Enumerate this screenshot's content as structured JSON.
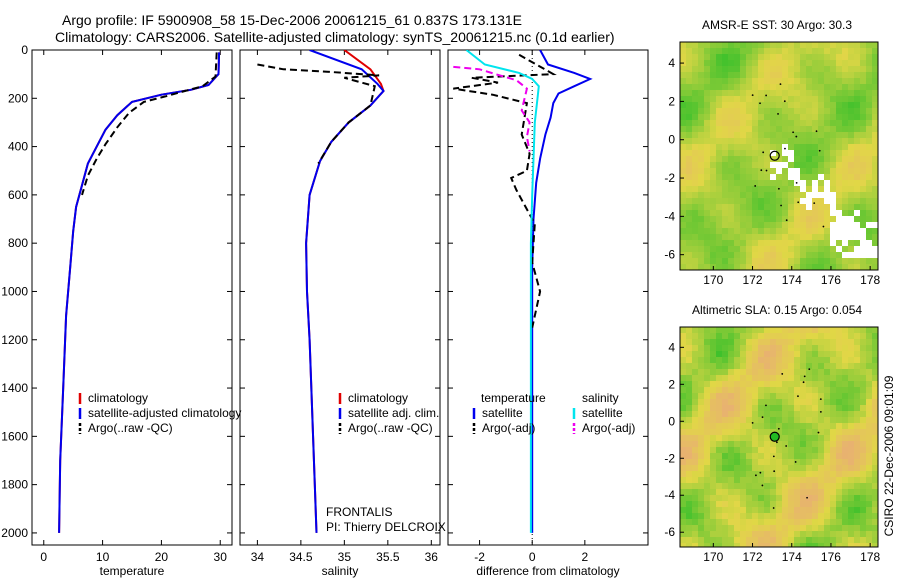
{
  "figure": {
    "title_line1": "Argo profile: IF 5900908_58 15-Dec-2006 20061215_61 0.837S 173.131E",
    "title_line2": "Climatology: CARS2006. Satellite-adjusted climatology: synTS_20061215.nc (0.1d earlier)",
    "credit": "CSIRO 22-Dec-2006 09:01:09"
  },
  "colors": {
    "red": "#e00000",
    "blue": "#0000ee",
    "black": "#000000",
    "cyan": "#00e5ee",
    "magenta": "#ee00ee",
    "map_green": "#22bb22",
    "map_yellow": "#e8d84a",
    "map_orange": "#e8b070"
  },
  "chart_data": [
    {
      "type": "line",
      "xlabel": "temperature",
      "xlim": [
        -2,
        32
      ],
      "ylim": [
        2050,
        0
      ],
      "xticks": [
        0,
        10,
        20,
        30
      ],
      "yticks": [
        0,
        200,
        400,
        600,
        800,
        1000,
        1200,
        1400,
        1600,
        1800,
        2000
      ],
      "legend": [
        "climatology",
        "satellite-adjusted climatology",
        "Argo(..raw -QC)"
      ],
      "series": [
        {
          "name": "climatology",
          "color": "red",
          "style": "solid",
          "x": [
            29.8,
            29.7,
            28,
            25,
            20,
            15,
            12.5,
            10.5,
            9,
            7.5,
            6.5,
            5.5,
            5,
            4.5,
            3.8,
            3.3,
            2.8,
            2.6
          ],
          "y": [
            10,
            100,
            145,
            165,
            185,
            215,
            270,
            330,
            400,
            470,
            560,
            650,
            750,
            900,
            1100,
            1400,
            1700,
            2000
          ]
        },
        {
          "name": "satellite-adjusted climatology",
          "color": "blue",
          "style": "solid",
          "x": [
            29.8,
            29.7,
            28,
            25,
            20,
            15,
            12.5,
            10.5,
            9,
            7.5,
            6.5,
            5.5,
            5,
            4.5,
            3.8,
            3.3,
            2.8,
            2.6
          ],
          "y": [
            10,
            100,
            145,
            165,
            185,
            215,
            270,
            330,
            400,
            470,
            560,
            650,
            750,
            900,
            1100,
            1400,
            1700,
            2000
          ]
        },
        {
          "name": "Argo(..raw -QC)",
          "color": "black",
          "style": "dashed",
          "x": [
            29.4,
            29.2,
            27,
            24,
            21,
            17,
            14.5,
            12.5,
            10.5,
            9,
            7.5,
            6.5
          ],
          "y": [
            10,
            110,
            150,
            170,
            190,
            215,
            260,
            320,
            390,
            450,
            520,
            600
          ]
        }
      ]
    },
    {
      "type": "line",
      "xlabel": "salinity",
      "xlim": [
        33.8,
        36.1
      ],
      "ylim": [
        2050,
        0
      ],
      "xticks": [
        34,
        34.5,
        35,
        35.5,
        36
      ],
      "yticks": [],
      "legend": [
        "climatology",
        "satellite adj. clim.",
        "Argo(..raw -QC)"
      ],
      "annotation": [
        "FRONTALIS",
        "PI: Thierry DELCROIX"
      ],
      "series": [
        {
          "name": "climatology",
          "color": "red",
          "style": "solid",
          "x": [
            35.0,
            35.3,
            35.42,
            35.45,
            35.3,
            35.05,
            34.85,
            34.72,
            34.6,
            34.56,
            34.57,
            34.6,
            34.63,
            34.66,
            34.68
          ],
          "y": [
            0,
            80,
            140,
            170,
            230,
            300,
            380,
            460,
            600,
            800,
            1000,
            1200,
            1500,
            1800,
            2000
          ]
        },
        {
          "name": "satellite adj. clim.",
          "color": "blue",
          "style": "solid",
          "x": [
            34.6,
            35.2,
            35.38,
            35.45,
            35.3,
            35.05,
            34.85,
            34.72,
            34.6,
            34.56,
            34.57,
            34.6,
            34.63,
            34.66,
            34.68
          ],
          "y": [
            0,
            80,
            140,
            170,
            230,
            300,
            380,
            460,
            600,
            800,
            1000,
            1200,
            1500,
            1800,
            2000
          ]
        },
        {
          "name": "Argo(..raw -QC)",
          "color": "black",
          "style": "dashed",
          "x": [
            34.0,
            34.3,
            34.8,
            35.4,
            35.0,
            35.35,
            35.3,
            35.05,
            34.85,
            34.7
          ],
          "y": [
            60,
            80,
            90,
            105,
            115,
            150,
            230,
            300,
            380,
            470
          ]
        }
      ]
    },
    {
      "type": "line",
      "xlabel": "difference from climatology",
      "xlim": [
        -3.2,
        4.4
      ],
      "ylim": [
        2050,
        0
      ],
      "xticks": [
        -2,
        0,
        2
      ],
      "yticks": [],
      "legend": [
        "temperature",
        "satellite",
        "Argo(-adj)",
        "salinity",
        "satellite",
        "Argo(-adj)"
      ],
      "series": [
        {
          "name": "satellite",
          "color": "blue",
          "style": "solid",
          "x": [
            0.3,
            0.6,
            1.6,
            2.2,
            1.6,
            1.0,
            0.8,
            0.7,
            0.5,
            0.3,
            0.15,
            0.05,
            0.0,
            0.0
          ],
          "y": [
            0,
            60,
            95,
            120,
            150,
            180,
            220,
            280,
            350,
            450,
            550,
            700,
            900,
            2000
          ]
        },
        {
          "name": "Argo(-adj)",
          "color": "black",
          "style": "dashed",
          "x": [
            -0.5,
            0.8,
            -2.3,
            -1.3,
            -3.0,
            -1.5,
            -0.2,
            -0.4,
            -0.1,
            -0.2,
            -0.8,
            -0.6,
            0.1,
            0.0,
            0.3,
            0.0
          ],
          "y": [
            20,
            100,
            115,
            135,
            160,
            185,
            220,
            350,
            430,
            500,
            530,
            580,
            720,
            880,
            1000,
            1150
          ]
        },
        {
          "name": "satellite",
          "color": "cyan",
          "style": "solid",
          "x": [
            -2.5,
            -1.8,
            -0.5,
            0.0,
            0.25,
            0.2,
            0.1,
            0.05,
            0.0,
            -0.05,
            -0.05,
            -0.05,
            -0.05,
            -0.05
          ],
          "y": [
            0,
            60,
            95,
            120,
            150,
            200,
            300,
            450,
            600,
            800,
            1000,
            1400,
            1800,
            2000
          ]
        },
        {
          "name": "Argo(-adj)",
          "color": "magenta",
          "style": "dashed",
          "x": [
            -3.0,
            -2.0,
            -1.4,
            -0.6,
            -0.2,
            -0.4,
            -0.1,
            -0.2,
            -0.1
          ],
          "y": [
            70,
            80,
            100,
            125,
            160,
            250,
            300,
            360,
            420
          ]
        }
      ]
    },
    {
      "type": "heatmap",
      "title": "AMSR-E SST: 30 Argo: 30.3",
      "xlim": [
        168.3,
        178.4
      ],
      "ylim": [
        -6.8,
        5.1
      ],
      "xticks": [
        170,
        172,
        174,
        176,
        178
      ],
      "yticks": [
        -6,
        -4,
        -2,
        0,
        2,
        4
      ],
      "marker": {
        "lon": 173.131,
        "lat": -0.837
      }
    },
    {
      "type": "heatmap",
      "title": "Altimetric SLA: 0.15 Argo: 0.054",
      "xlim": [
        168.3,
        178.4
      ],
      "ylim": [
        -6.8,
        5.1
      ],
      "xticks": [
        170,
        172,
        174,
        176,
        178
      ],
      "yticks": [
        -6,
        -4,
        -2,
        0,
        2,
        4
      ],
      "marker": {
        "lon": 173.131,
        "lat": -0.837
      }
    }
  ]
}
